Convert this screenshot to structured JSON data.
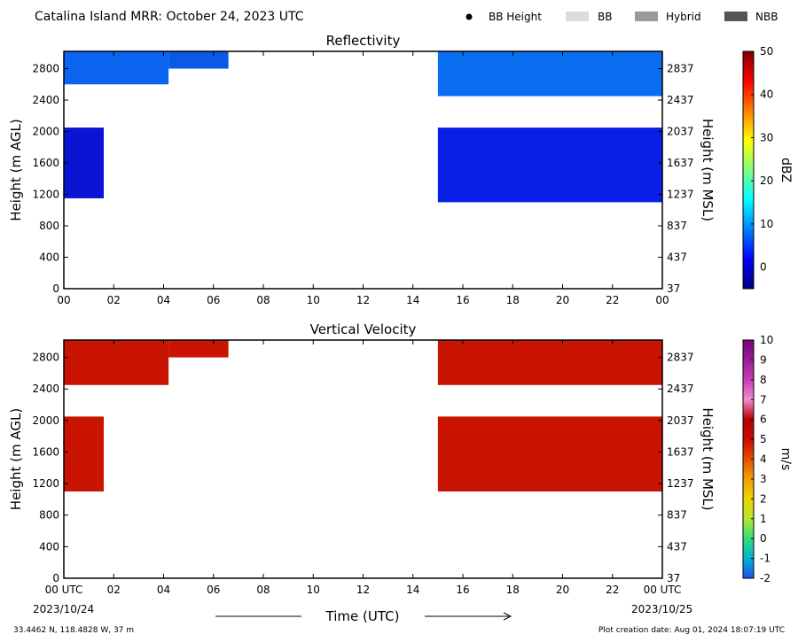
{
  "header": {
    "title": "Catalina Island MRR:  October 24, 2023 UTC",
    "legend": [
      {
        "label": "BB Height",
        "marker": "dot",
        "color": "#000000"
      },
      {
        "label": "BB",
        "marker": "swatch",
        "color": "#dcdcdc"
      },
      {
        "label": "Hybrid",
        "marker": "swatch",
        "color": "#999999"
      },
      {
        "label": "NBB",
        "marker": "swatch",
        "color": "#555555"
      }
    ]
  },
  "footer": {
    "location": "33.4462 N, 118.4828 W, 37 m",
    "creation": "Plot creation date: Aug 01, 2024 18:07:19 UTC",
    "xlabel": "Time (UTC)",
    "date_start": "2023/10/24",
    "date_end": "2023/10/25"
  },
  "chart_data": [
    {
      "type": "heatmap",
      "title": "Reflectivity",
      "ylabel_left": "Height (m AGL)",
      "ylabel_right": "Height (m MSL)",
      "xlim_hours": [
        0,
        24
      ],
      "ylim_m": [
        0,
        3020
      ],
      "x_ticks": [
        "00",
        "02",
        "04",
        "06",
        "08",
        "10",
        "12",
        "14",
        "16",
        "18",
        "20",
        "22",
        "00"
      ],
      "y_ticks_left": [
        "0",
        "400",
        "800",
        "1200",
        "1600",
        "2000",
        "2400",
        "2800"
      ],
      "y_ticks_right": [
        "37",
        "437",
        "837",
        "1237",
        "1637",
        "2037",
        "2437",
        "2837"
      ],
      "colorbar": {
        "label": "dBZ",
        "min": -5,
        "max": 50,
        "ticks": [
          "0",
          "10",
          "20",
          "30",
          "40",
          "50"
        ],
        "tick_values": [
          0,
          10,
          20,
          30,
          40,
          50
        ],
        "colors": [
          "#00007f",
          "#0000ff",
          "#0080ff",
          "#00ffff",
          "#80ff80",
          "#ffff00",
          "#ff8000",
          "#ff0000",
          "#7f0000"
        ]
      },
      "regions": [
        {
          "t0": 0.0,
          "t1": 1.6,
          "h0": 1150,
          "h1": 2050,
          "value": -4,
          "color": "#0a14d2"
        },
        {
          "t0": 0.0,
          "t1": 4.2,
          "h0": 2600,
          "h1": 3020,
          "value": 6,
          "color": "#0a64f0"
        },
        {
          "t0": 4.2,
          "t1": 6.6,
          "h0": 2800,
          "h1": 3020,
          "value": 5,
          "color": "#0a5ae6"
        },
        {
          "t0": 15.0,
          "t1": 24.0,
          "h0": 2450,
          "h1": 3020,
          "value": 7,
          "color": "#0a6ef0"
        },
        {
          "t0": 15.0,
          "t1": 24.0,
          "h0": 1100,
          "h1": 2050,
          "value": -2,
          "color": "#0820e6"
        }
      ]
    },
    {
      "type": "heatmap",
      "title": "Vertical Velocity",
      "ylabel_left": "Height (m AGL)",
      "ylabel_right": "Height (m MSL)",
      "xlim_hours": [
        0,
        24
      ],
      "ylim_m": [
        0,
        3020
      ],
      "x_ticks": [
        "00 UTC",
        "02",
        "04",
        "06",
        "08",
        "10",
        "12",
        "14",
        "16",
        "18",
        "20",
        "22",
        "00 UTC"
      ],
      "y_ticks_left": [
        "0",
        "400",
        "800",
        "1200",
        "1600",
        "2000",
        "2400",
        "2800"
      ],
      "y_ticks_right": [
        "37",
        "437",
        "837",
        "1237",
        "1637",
        "2037",
        "2437",
        "2837"
      ],
      "colorbar": {
        "label": "m/s",
        "min": -2,
        "max": 10,
        "ticks": [
          "-2",
          "-1",
          "0",
          "1",
          "2",
          "3",
          "4",
          "5",
          "6",
          "7",
          "8",
          "9",
          "10"
        ],
        "tick_values": [
          -2,
          -1,
          0,
          1,
          2,
          3,
          4,
          5,
          6,
          7,
          8,
          9,
          10
        ],
        "colors": [
          "#1e50e6",
          "#00b4d2",
          "#32dc78",
          "#b4e632",
          "#f0d200",
          "#f0a000",
          "#e65000",
          "#c80a00",
          "#b40000",
          "#f08cd2",
          "#c83cb4",
          "#961e96",
          "#780078"
        ]
      },
      "regions": [
        {
          "t0": 0.0,
          "t1": 1.6,
          "h0": 1100,
          "h1": 2050,
          "value": 6,
          "color": "#c81400"
        },
        {
          "t0": 0.0,
          "t1": 4.2,
          "h0": 2450,
          "h1": 3020,
          "value": 6,
          "color": "#c81400"
        },
        {
          "t0": 4.2,
          "t1": 6.6,
          "h0": 2800,
          "h1": 3020,
          "value": 6,
          "color": "#c81400"
        },
        {
          "t0": 15.0,
          "t1": 24.0,
          "h0": 2450,
          "h1": 3020,
          "value": 6,
          "color": "#c81400"
        },
        {
          "t0": 15.0,
          "t1": 24.0,
          "h0": 1100,
          "h1": 2050,
          "value": 6,
          "color": "#c81400"
        }
      ]
    }
  ]
}
